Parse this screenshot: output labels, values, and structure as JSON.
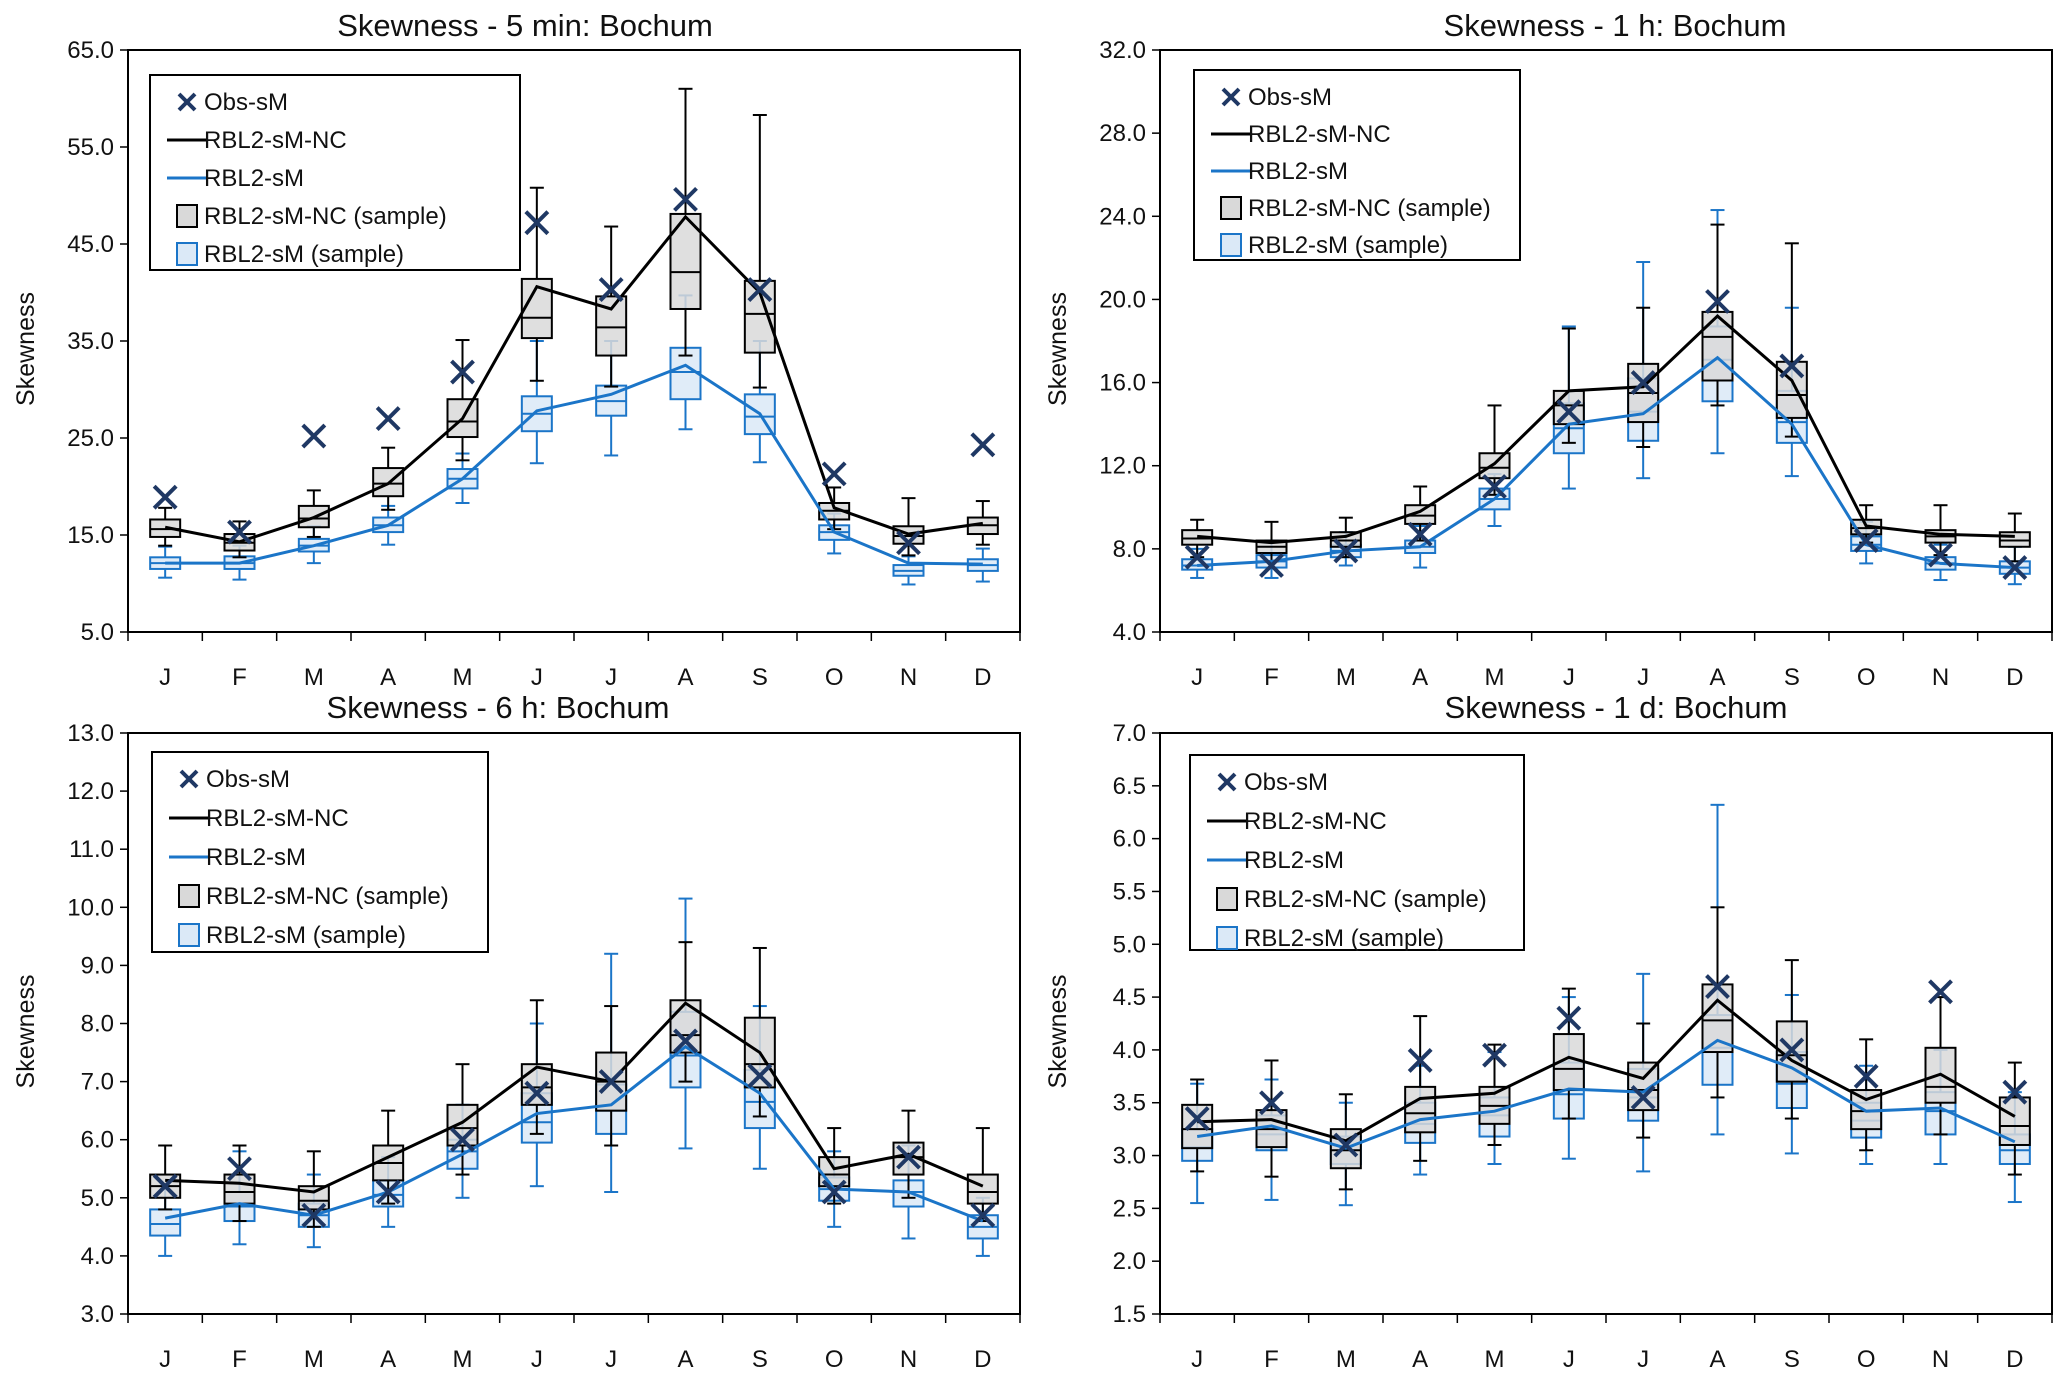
{
  "colors": {
    "obs": "#1f3864",
    "nc": "#000000",
    "sm": "#1b75c8",
    "nc_fill": "#d9d9d9",
    "sm_fill": "#dbe9f7"
  },
  "legend": {
    "obs": "Obs-sM",
    "nc_line": "RBL2-sM-NC",
    "sm_line": "RBL2-sM",
    "nc_sample": "RBL2-sM-NC (sample)",
    "sm_sample": "RBL2-sM (sample)"
  },
  "chart_data": [
    {
      "type": "box",
      "title": "Skewness - 5 min: Bochum",
      "xlabel": "",
      "ylabel": "Skewness",
      "ylim": [
        5,
        65
      ],
      "yticks": [
        "5.0",
        "15.0",
        "25.0",
        "35.0",
        "45.0",
        "55.0",
        "65.0"
      ],
      "categories": [
        "J",
        "F",
        "M",
        "A",
        "M",
        "J",
        "J",
        "A",
        "S",
        "O",
        "N",
        "D"
      ],
      "obs": [
        18.9,
        15.3,
        25.2,
        27.0,
        31.8,
        47.2,
        40.3,
        49.6,
        40.3,
        21.3,
        14.2,
        24.3
      ],
      "nc_line": [
        15.8,
        14.3,
        16.8,
        20.3,
        27.0,
        40.6,
        38.3,
        47.8,
        40.0,
        17.8,
        15.1,
        16.2
      ],
      "sm_line": [
        12.1,
        12.1,
        13.9,
        16.0,
        20.8,
        27.8,
        29.5,
        32.5,
        27.5,
        15.3,
        12.1,
        12.0
      ],
      "nc_box": [
        {
          "min": 13.9,
          "q1": 14.8,
          "med": 15.6,
          "q3": 16.6,
          "max": 17.8
        },
        {
          "min": 12.7,
          "q1": 13.4,
          "med": 14.2,
          "q3": 15.1,
          "max": 16.4
        },
        {
          "min": 14.8,
          "q1": 15.8,
          "med": 16.7,
          "q3": 18.0,
          "max": 19.6
        },
        {
          "min": 17.6,
          "q1": 19.0,
          "med": 20.3,
          "q3": 21.9,
          "max": 24.0
        },
        {
          "min": 22.7,
          "q1": 25.1,
          "med": 26.7,
          "q3": 29.0,
          "max": 35.1
        },
        {
          "min": 30.9,
          "q1": 35.3,
          "med": 37.4,
          "q3": 41.4,
          "max": 50.8
        },
        {
          "min": 30.3,
          "q1": 33.5,
          "med": 36.4,
          "q3": 39.6,
          "max": 46.8
        },
        {
          "min": 33.5,
          "q1": 38.3,
          "med": 42.1,
          "q3": 48.1,
          "max": 61.0
        },
        {
          "min": 30.2,
          "q1": 33.8,
          "med": 37.8,
          "q3": 41.2,
          "max": 58.3
        },
        {
          "min": 15.6,
          "q1": 16.6,
          "med": 17.5,
          "q3": 18.3,
          "max": 19.9
        },
        {
          "min": 12.9,
          "q1": 14.1,
          "med": 14.9,
          "q3": 15.9,
          "max": 18.8
        },
        {
          "min": 14.0,
          "q1": 15.1,
          "med": 16.0,
          "q3": 16.8,
          "max": 18.5
        }
      ],
      "sm_box": [
        {
          "min": 10.6,
          "q1": 11.5,
          "med": 12.1,
          "q3": 12.7,
          "max": 13.8
        },
        {
          "min": 10.4,
          "q1": 11.5,
          "med": 12.1,
          "q3": 12.8,
          "max": 13.9
        },
        {
          "min": 12.1,
          "q1": 13.3,
          "med": 13.9,
          "q3": 14.6,
          "max": 15.9
        },
        {
          "min": 14.0,
          "q1": 15.3,
          "med": 16.0,
          "q3": 16.8,
          "max": 18.0
        },
        {
          "min": 18.3,
          "q1": 19.8,
          "med": 20.8,
          "q3": 21.8,
          "max": 23.4
        },
        {
          "min": 22.4,
          "q1": 25.7,
          "med": 27.5,
          "q3": 29.3,
          "max": 35.0
        },
        {
          "min": 23.2,
          "q1": 27.3,
          "med": 28.8,
          "q3": 30.4,
          "max": 35.0
        },
        {
          "min": 25.9,
          "q1": 29.0,
          "med": 31.8,
          "q3": 34.3,
          "max": 39.7
        },
        {
          "min": 22.5,
          "q1": 25.4,
          "med": 27.2,
          "q3": 29.5,
          "max": 35.0
        },
        {
          "min": 13.1,
          "q1": 14.5,
          "med": 15.3,
          "q3": 16.0,
          "max": 17.2
        },
        {
          "min": 9.9,
          "q1": 10.8,
          "med": 11.3,
          "q3": 11.9,
          "max": 12.8
        },
        {
          "min": 10.2,
          "q1": 11.3,
          "med": 11.9,
          "q3": 12.5,
          "max": 13.6
        }
      ]
    },
    {
      "type": "box",
      "title": "Skewness - 1 h: Bochum",
      "xlabel": "",
      "ylabel": "Skewness",
      "ylim": [
        4,
        32
      ],
      "yticks": [
        "4.0",
        "8.0",
        "12.0",
        "16.0",
        "20.0",
        "24.0",
        "28.0",
        "32.0"
      ],
      "categories": [
        "J",
        "F",
        "M",
        "A",
        "M",
        "J",
        "J",
        "A",
        "S",
        "O",
        "N",
        "D"
      ],
      "obs": [
        7.6,
        7.2,
        7.9,
        8.7,
        11.0,
        14.6,
        16.0,
        19.9,
        16.8,
        8.4,
        7.7,
        7.1
      ],
      "nc_line": [
        8.6,
        8.3,
        8.6,
        9.8,
        12.1,
        15.6,
        15.8,
        19.2,
        16.1,
        9.1,
        8.7,
        8.6
      ],
      "sm_line": [
        7.2,
        7.4,
        7.9,
        8.1,
        10.4,
        14.0,
        14.5,
        17.2,
        14.0,
        8.2,
        7.3,
        7.1
      ],
      "nc_box": [
        {
          "min": 7.6,
          "q1": 8.2,
          "med": 8.5,
          "q3": 8.9,
          "max": 9.4
        },
        {
          "min": 7.4,
          "q1": 7.8,
          "med": 8.1,
          "q3": 8.4,
          "max": 9.3
        },
        {
          "min": 7.6,
          "q1": 8.1,
          "med": 8.4,
          "q3": 8.8,
          "max": 9.5
        },
        {
          "min": 8.4,
          "q1": 9.2,
          "med": 9.6,
          "q3": 10.1,
          "max": 11.0
        },
        {
          "min": 10.6,
          "q1": 11.4,
          "med": 11.9,
          "q3": 12.6,
          "max": 14.9
        },
        {
          "min": 13.1,
          "q1": 14.0,
          "med": 14.9,
          "q3": 15.6,
          "max": 18.6
        },
        {
          "min": 12.9,
          "q1": 14.1,
          "med": 15.5,
          "q3": 16.9,
          "max": 19.6
        },
        {
          "min": 14.9,
          "q1": 16.1,
          "med": 18.2,
          "q3": 19.4,
          "max": 23.6
        },
        {
          "min": 13.4,
          "q1": 14.3,
          "med": 15.4,
          "q3": 17.0,
          "max": 22.7
        },
        {
          "min": 8.3,
          "q1": 8.7,
          "med": 9.0,
          "q3": 9.4,
          "max": 10.1
        },
        {
          "min": 7.7,
          "q1": 8.3,
          "med": 8.6,
          "q3": 8.9,
          "max": 10.1
        },
        {
          "min": 7.4,
          "q1": 8.1,
          "med": 8.4,
          "q3": 8.8,
          "max": 9.7
        }
      ],
      "sm_box": [
        {
          "min": 6.6,
          "q1": 7.0,
          "med": 7.2,
          "q3": 7.5,
          "max": 8.0
        },
        {
          "min": 6.6,
          "q1": 7.1,
          "med": 7.4,
          "q3": 7.7,
          "max": 8.4
        },
        {
          "min": 7.2,
          "q1": 7.6,
          "med": 7.9,
          "q3": 8.2,
          "max": 8.8
        },
        {
          "min": 7.1,
          "q1": 7.8,
          "med": 8.1,
          "q3": 8.4,
          "max": 9.1
        },
        {
          "min": 9.1,
          "q1": 9.9,
          "med": 10.4,
          "q3": 10.9,
          "max": 11.6
        },
        {
          "min": 10.9,
          "q1": 12.6,
          "med": 13.8,
          "q3": 15.0,
          "max": 18.7
        },
        {
          "min": 11.4,
          "q1": 13.2,
          "med": 14.6,
          "q3": 16.2,
          "max": 21.8
        },
        {
          "min": 12.6,
          "q1": 15.1,
          "med": 17.1,
          "q3": 18.7,
          "max": 24.3
        },
        {
          "min": 11.5,
          "q1": 13.1,
          "med": 14.1,
          "q3": 15.6,
          "max": 19.6
        },
        {
          "min": 7.3,
          "q1": 7.9,
          "med": 8.2,
          "q3": 8.6,
          "max": 9.3
        },
        {
          "min": 6.5,
          "q1": 7.0,
          "med": 7.3,
          "q3": 7.6,
          "max": 8.2
        },
        {
          "min": 6.3,
          "q1": 6.8,
          "med": 7.1,
          "q3": 7.4,
          "max": 8.1
        }
      ]
    },
    {
      "type": "box",
      "title": "Skewness - 6 h: Bochum",
      "xlabel": "",
      "ylabel": "Skewness",
      "ylim": [
        3,
        13
      ],
      "yticks": [
        "3.0",
        "4.0",
        "5.0",
        "6.0",
        "7.0",
        "8.0",
        "9.0",
        "10.0",
        "11.0",
        "12.0",
        "13.0"
      ],
      "categories": [
        "J",
        "F",
        "M",
        "A",
        "M",
        "J",
        "J",
        "A",
        "S",
        "O",
        "N",
        "D"
      ],
      "obs": [
        5.2,
        5.5,
        4.7,
        5.1,
        6.0,
        6.8,
        7.0,
        7.7,
        7.1,
        5.1,
        5.7,
        4.7
      ],
      "nc_line": [
        5.3,
        5.25,
        5.1,
        5.7,
        6.3,
        7.25,
        7.0,
        8.35,
        7.5,
        5.5,
        5.75,
        5.2
      ],
      "sm_line": [
        4.65,
        4.9,
        4.7,
        5.1,
        5.75,
        6.45,
        6.6,
        7.6,
        6.8,
        5.15,
        5.1,
        4.6
      ],
      "nc_box": [
        {
          "min": 4.8,
          "q1": 5.0,
          "med": 5.2,
          "q3": 5.4,
          "max": 5.9
        },
        {
          "min": 4.6,
          "q1": 4.9,
          "med": 5.1,
          "q3": 5.4,
          "max": 5.9
        },
        {
          "min": 4.5,
          "q1": 4.8,
          "med": 4.95,
          "q3": 5.2,
          "max": 5.8
        },
        {
          "min": 4.9,
          "q1": 5.3,
          "med": 5.6,
          "q3": 5.9,
          "max": 6.5
        },
        {
          "min": 5.4,
          "q1": 5.9,
          "med": 6.2,
          "q3": 6.6,
          "max": 7.3
        },
        {
          "min": 6.1,
          "q1": 6.6,
          "med": 6.9,
          "q3": 7.3,
          "max": 8.4
        },
        {
          "min": 5.9,
          "q1": 6.5,
          "med": 7.0,
          "q3": 7.5,
          "max": 8.3
        },
        {
          "min": 7.0,
          "q1": 7.5,
          "med": 7.8,
          "q3": 8.4,
          "max": 9.4
        },
        {
          "min": 6.4,
          "q1": 6.9,
          "med": 7.3,
          "q3": 8.1,
          "max": 9.3
        },
        {
          "min": 4.9,
          "q1": 5.2,
          "med": 5.4,
          "q3": 5.7,
          "max": 6.2
        },
        {
          "min": 5.0,
          "q1": 5.4,
          "med": 5.7,
          "q3": 5.95,
          "max": 6.5
        },
        {
          "min": 4.6,
          "q1": 4.9,
          "med": 5.1,
          "q3": 5.4,
          "max": 6.2
        }
      ],
      "sm_box": [
        {
          "min": 4.0,
          "q1": 4.35,
          "med": 4.55,
          "q3": 4.8,
          "max": 5.2
        },
        {
          "min": 4.2,
          "q1": 4.6,
          "med": 4.85,
          "q3": 5.1,
          "max": 5.8
        },
        {
          "min": 4.15,
          "q1": 4.5,
          "med": 4.7,
          "q3": 4.9,
          "max": 5.4
        },
        {
          "min": 4.5,
          "q1": 4.85,
          "med": 5.05,
          "q3": 5.3,
          "max": 5.7
        },
        {
          "min": 5.0,
          "q1": 5.5,
          "med": 5.8,
          "q3": 6.0,
          "max": 6.6
        },
        {
          "min": 5.2,
          "q1": 5.95,
          "med": 6.3,
          "q3": 6.8,
          "max": 8.0
        },
        {
          "min": 5.1,
          "q1": 6.1,
          "med": 6.5,
          "q3": 6.95,
          "max": 9.2
        },
        {
          "min": 5.85,
          "q1": 6.9,
          "med": 7.45,
          "q3": 8.2,
          "max": 10.15
        },
        {
          "min": 5.5,
          "q1": 6.2,
          "med": 6.65,
          "q3": 7.2,
          "max": 8.3
        },
        {
          "min": 4.5,
          "q1": 4.95,
          "med": 5.15,
          "q3": 5.35,
          "max": 5.8
        },
        {
          "min": 4.3,
          "q1": 4.85,
          "med": 5.1,
          "q3": 5.3,
          "max": 5.9
        },
        {
          "min": 4.0,
          "q1": 4.3,
          "med": 4.5,
          "q3": 4.7,
          "max": 5.0
        }
      ]
    },
    {
      "type": "box",
      "title": "Skewness - 1 d: Bochum",
      "xlabel": "",
      "ylabel": "Skewness",
      "ylim": [
        1.5,
        7
      ],
      "yticks": [
        "1.5",
        "2.0",
        "2.5",
        "3.0",
        "3.5",
        "4.0",
        "4.5",
        "5.0",
        "5.5",
        "6.0",
        "6.5",
        "7.0"
      ],
      "categories": [
        "J",
        "F",
        "M",
        "A",
        "M",
        "J",
        "J",
        "A",
        "S",
        "O",
        "N",
        "D"
      ],
      "obs": [
        3.35,
        3.5,
        3.1,
        3.9,
        3.95,
        4.3,
        3.55,
        4.6,
        4.0,
        3.75,
        4.55,
        3.6
      ],
      "nc_line": [
        3.32,
        3.34,
        3.14,
        3.54,
        3.59,
        3.93,
        3.73,
        4.47,
        3.9,
        3.53,
        3.77,
        3.37
      ],
      "sm_line": [
        3.18,
        3.28,
        3.07,
        3.34,
        3.42,
        3.63,
        3.6,
        4.09,
        3.83,
        3.42,
        3.45,
        3.13
      ],
      "nc_box": [
        {
          "min": 2.85,
          "q1": 3.07,
          "med": 3.25,
          "q3": 3.48,
          "max": 3.72
        },
        {
          "min": 2.8,
          "q1": 3.08,
          "med": 3.25,
          "q3": 3.43,
          "max": 3.9
        },
        {
          "min": 2.68,
          "q1": 2.88,
          "med": 3.05,
          "q3": 3.25,
          "max": 3.58
        },
        {
          "min": 2.95,
          "q1": 3.22,
          "med": 3.4,
          "q3": 3.65,
          "max": 4.32
        },
        {
          "min": 3.1,
          "q1": 3.3,
          "med": 3.47,
          "q3": 3.65,
          "max": 4.05
        },
        {
          "min": 3.35,
          "q1": 3.62,
          "med": 3.82,
          "q3": 4.15,
          "max": 4.58
        },
        {
          "min": 3.17,
          "q1": 3.43,
          "med": 3.62,
          "q3": 3.88,
          "max": 4.25
        },
        {
          "min": 3.55,
          "q1": 3.98,
          "med": 4.28,
          "q3": 4.62,
          "max": 5.35
        },
        {
          "min": 3.35,
          "q1": 3.7,
          "med": 3.95,
          "q3": 4.27,
          "max": 4.85
        },
        {
          "min": 3.05,
          "q1": 3.25,
          "med": 3.42,
          "q3": 3.62,
          "max": 4.1
        },
        {
          "min": 3.2,
          "q1": 3.5,
          "med": 3.65,
          "q3": 4.02,
          "max": 4.5
        },
        {
          "min": 2.82,
          "q1": 3.1,
          "med": 3.28,
          "q3": 3.55,
          "max": 3.88
        }
      ],
      "sm_box": [
        {
          "min": 2.55,
          "q1": 2.95,
          "med": 3.08,
          "q3": 3.25,
          "max": 3.68
        },
        {
          "min": 2.58,
          "q1": 3.05,
          "med": 3.2,
          "q3": 3.38,
          "max": 3.72
        },
        {
          "min": 2.53,
          "q1": 2.92,
          "med": 3.05,
          "q3": 3.18,
          "max": 3.5
        },
        {
          "min": 2.82,
          "q1": 3.12,
          "med": 3.3,
          "q3": 3.5,
          "max": 3.85
        },
        {
          "min": 2.92,
          "q1": 3.18,
          "med": 3.38,
          "q3": 3.55,
          "max": 3.98
        },
        {
          "min": 2.97,
          "q1": 3.35,
          "med": 3.58,
          "q3": 3.88,
          "max": 4.5
        },
        {
          "min": 2.85,
          "q1": 3.33,
          "med": 3.55,
          "q3": 3.82,
          "max": 4.72
        },
        {
          "min": 3.2,
          "q1": 3.67,
          "med": 4.02,
          "q3": 4.33,
          "max": 6.32
        },
        {
          "min": 3.02,
          "q1": 3.45,
          "med": 3.68,
          "q3": 3.98,
          "max": 4.52
        },
        {
          "min": 2.92,
          "q1": 3.17,
          "med": 3.33,
          "q3": 3.5,
          "max": 3.85
        },
        {
          "min": 2.92,
          "q1": 3.2,
          "med": 3.42,
          "q3": 3.6,
          "max": 4.0
        },
        {
          "min": 2.56,
          "q1": 2.92,
          "med": 3.05,
          "q3": 3.2,
          "max": 3.6
        }
      ]
    }
  ]
}
